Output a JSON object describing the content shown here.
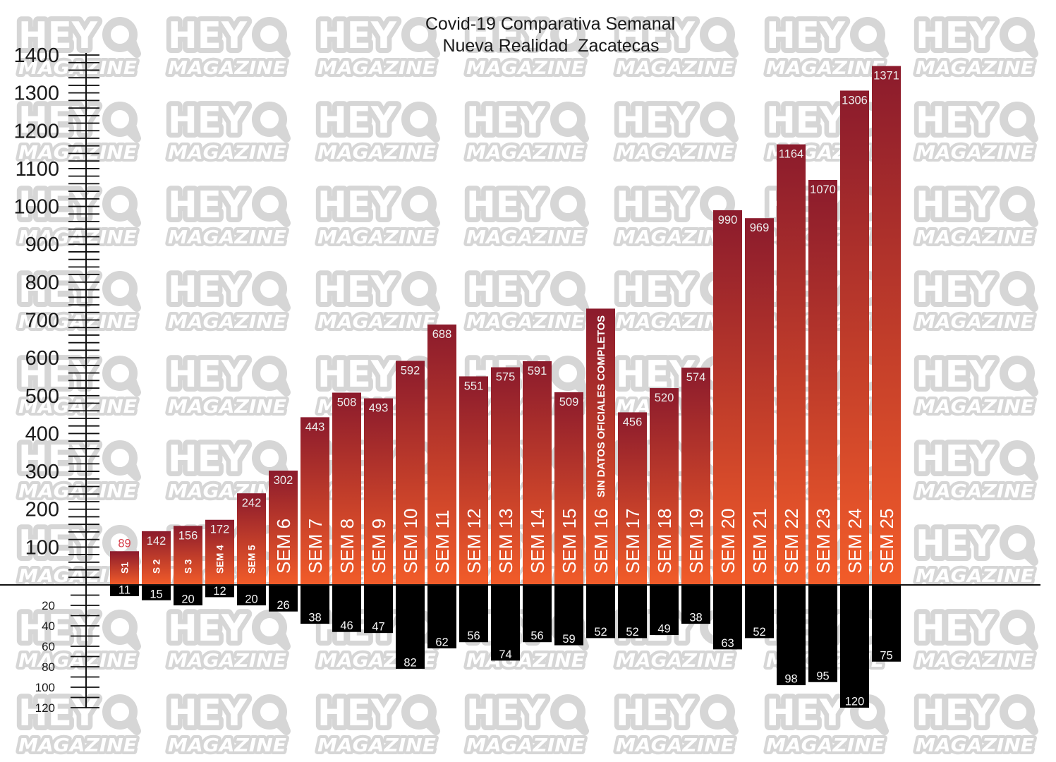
{
  "watermark": {
    "line1": "HEY",
    "line2": "MAGAZINE"
  },
  "colors": {
    "bar_top": "#8b1b2c",
    "bar_bottom": "#f25c29",
    "negative_bar": "#000000",
    "value_label": "#ececec",
    "outside_value_label": "#d8404c",
    "negative_label": "#f4f4f4",
    "category_label": "#ffffff",
    "axis": "#111111",
    "text": "#1a1a1a",
    "watermark": "#d6d6d6"
  },
  "chart_data": {
    "type": "bar",
    "title": "Covid-19 Comparativa Semanal",
    "subtitle": "Nueva Realidad  Zacatecas",
    "categories": [
      "S1",
      "S 2",
      "S 3",
      "SEM 4",
      "SEM 5",
      "SEM 6",
      "SEM 7",
      "SEM 8",
      "SEM 9",
      "SEM 10",
      "SEM 11",
      "SEM 12",
      "SEM 13",
      "SEM 14",
      "SEM 15",
      "SEM 16",
      "SEM 17",
      "SEM 18",
      "SEM 19",
      "SEM 20",
      "SEM 21",
      "SEM 22",
      "SEM 23",
      "SEM 24",
      "SEM 25"
    ],
    "series": [
      {
        "values": [
          89,
          142,
          156,
          172,
          242,
          302,
          443,
          508,
          493,
          592,
          688,
          551,
          575,
          591,
          509,
          null,
          456,
          520,
          574,
          990,
          969,
          1164,
          1070,
          1306,
          1371
        ]
      },
      {
        "values": [
          11,
          15,
          20,
          12,
          20,
          26,
          38,
          46,
          47,
          82,
          62,
          56,
          74,
          56,
          59,
          52,
          52,
          49,
          38,
          63,
          52,
          98,
          95,
          120,
          75
        ]
      }
    ],
    "ylim_upper": [
      0,
      1400
    ],
    "ylim_lower": [
      0,
      120
    ],
    "yticks_upper": [
      100,
      200,
      300,
      400,
      500,
      600,
      700,
      800,
      900,
      1000,
      1100,
      1200,
      1300,
      1400
    ],
    "yticks_lower": [
      20,
      40,
      60,
      80,
      100,
      120
    ],
    "grid": false,
    "annotations": [
      {
        "category_index": 15,
        "text": "SIN DATOS OFICIALES COMPLETOS",
        "bar_level": 730
      }
    ]
  }
}
